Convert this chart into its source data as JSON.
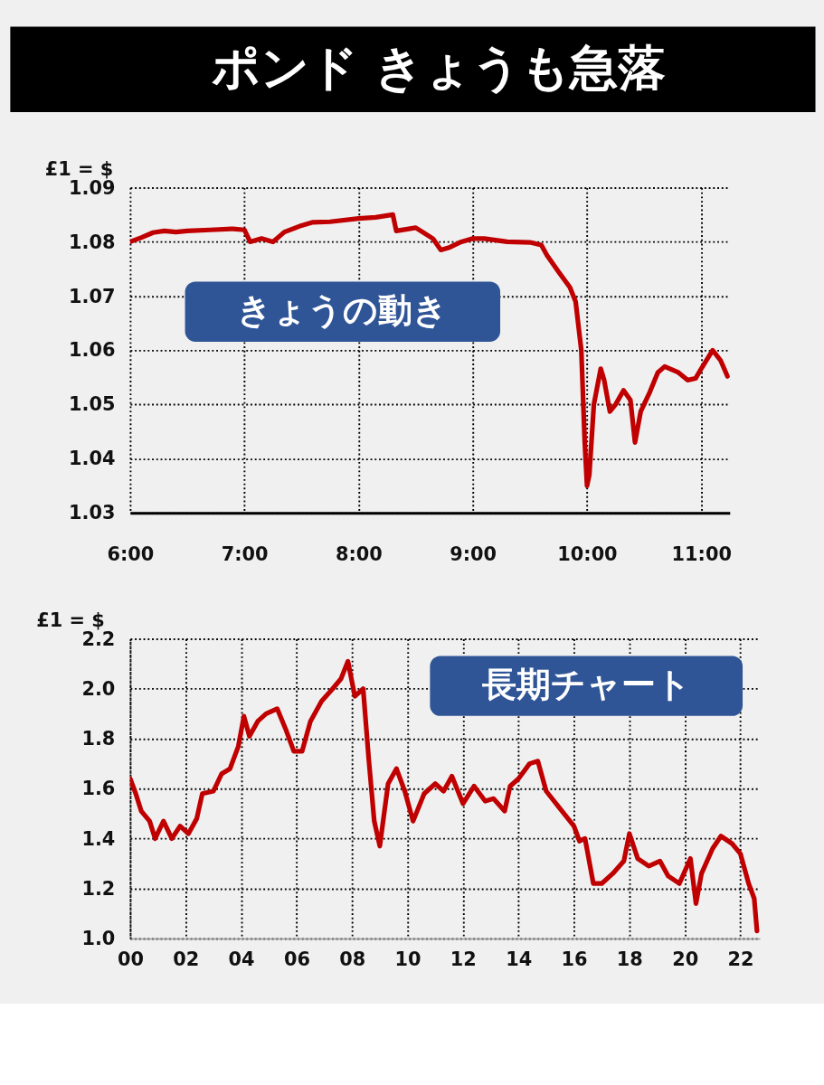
{
  "chart_data": [
    {
      "type": "line",
      "title": "ポンド きょうも急落",
      "ylabel": "£1 = $",
      "annotations": [
        "きょうの動き"
      ],
      "xlim": [
        6,
        11.25
      ],
      "ylim": [
        1.03,
        1.09
      ],
      "xticks": [
        {
          "value": 6,
          "label": "6:00"
        },
        {
          "value": 7,
          "label": "7:00"
        },
        {
          "value": 8,
          "label": "8:00"
        },
        {
          "value": 9,
          "label": "9:00"
        },
        {
          "value": 10,
          "label": "10:00"
        },
        {
          "value": 11,
          "label": "11:00"
        }
      ],
      "yticks": [
        1.03,
        1.04,
        1.05,
        1.06,
        1.07,
        1.08,
        1.09
      ],
      "grid": true,
      "marker": "none",
      "line_style": "solid",
      "series": [
        {
          "color": "#c00000",
          "x": [
            6,
            6.1,
            6.2,
            6.3,
            6.4,
            6.5,
            6.7,
            6.9,
            7.0,
            7.05,
            7.15,
            7.25,
            7.35,
            7.5,
            7.6,
            7.75,
            8.0,
            8.15,
            8.3,
            8.33,
            8.5,
            8.65,
            8.72,
            8.8,
            8.9,
            9.0,
            9.1,
            9.3,
            9.5,
            9.6,
            9.65,
            9.75,
            9.85,
            9.9,
            9.95,
            9.98,
            10.0,
            10.02,
            10.06,
            10.12,
            10.15,
            10.2,
            10.25,
            10.32,
            10.38,
            10.42,
            10.47,
            10.55,
            10.62,
            10.68,
            10.8,
            10.88,
            10.95,
            11.0,
            11.1,
            11.17,
            11.23
          ],
          "values": [
            1.08,
            1.0808,
            1.0817,
            1.082,
            1.0818,
            1.082,
            1.0822,
            1.0824,
            1.0822,
            1.08,
            1.0806,
            1.08,
            1.0818,
            1.083,
            1.0836,
            1.0837,
            1.0843,
            1.0845,
            1.085,
            1.082,
            1.0826,
            1.0806,
            1.0785,
            1.079,
            1.08,
            1.0806,
            1.0806,
            1.08,
            1.0799,
            1.0794,
            1.0775,
            1.0745,
            1.0716,
            1.069,
            1.06,
            1.043,
            1.035,
            1.037,
            1.05,
            1.0566,
            1.0545,
            1.0487,
            1.05,
            1.0526,
            1.0508,
            1.043,
            1.0487,
            1.0523,
            1.0559,
            1.057,
            1.0559,
            1.0545,
            1.0548,
            1.0566,
            1.06,
            1.0581,
            1.0552
          ]
        }
      ]
    },
    {
      "type": "line",
      "ylabel": "£1 = $",
      "annotations": [
        "長期チャート"
      ],
      "xlim": [
        0,
        22.7
      ],
      "ylim": [
        1.0,
        2.2
      ],
      "xticks": [
        {
          "value": 0,
          "label": "00"
        },
        {
          "value": 2,
          "label": "02"
        },
        {
          "value": 4,
          "label": "04"
        },
        {
          "value": 6,
          "label": "06"
        },
        {
          "value": 8,
          "label": "08"
        },
        10,
        12,
        14,
        16,
        18,
        20,
        22
      ],
      "yticks": [
        {
          "value": 1,
          "label": "1.0"
        },
        1.2,
        1.4,
        1.6,
        1.8,
        {
          "value": 2,
          "label": "2.0"
        },
        2.2
      ],
      "grid": true,
      "marker": "none",
      "line_style": "solid",
      "series": [
        {
          "color": "#c00000",
          "x": [
            0.0,
            0.2,
            0.4,
            0.7,
            0.9,
            1.2,
            1.5,
            1.8,
            2.1,
            2.4,
            2.6,
            3.0,
            3.3,
            3.6,
            3.9,
            4.1,
            4.3,
            4.6,
            4.9,
            5.3,
            5.6,
            5.9,
            6.2,
            6.5,
            6.9,
            7.3,
            7.6,
            7.85,
            8.1,
            8.4,
            8.6,
            8.8,
            9.0,
            9.3,
            9.6,
            9.9,
            10.2,
            10.6,
            11.0,
            11.3,
            11.6,
            12.0,
            12.4,
            12.8,
            13.1,
            13.5,
            13.7,
            14.0,
            14.4,
            14.7,
            15.0,
            15.5,
            16.0,
            16.2,
            16.4,
            16.7,
            17.0,
            17.4,
            17.8,
            18.0,
            18.3,
            18.7,
            19.1,
            19.4,
            19.8,
            20.2,
            20.4,
            20.6,
            21.0,
            21.3,
            21.7,
            22.0,
            22.3,
            22.5,
            22.6
          ],
          "values": [
            1.64,
            1.58,
            1.51,
            1.47,
            1.4,
            1.47,
            1.4,
            1.45,
            1.42,
            1.48,
            1.58,
            1.59,
            1.66,
            1.68,
            1.77,
            1.89,
            1.81,
            1.87,
            1.9,
            1.92,
            1.84,
            1.75,
            1.75,
            1.87,
            1.95,
            2.0,
            2.04,
            2.11,
            1.97,
            2.0,
            1.72,
            1.47,
            1.37,
            1.62,
            1.68,
            1.59,
            1.47,
            1.58,
            1.62,
            1.59,
            1.65,
            1.54,
            1.61,
            1.55,
            1.56,
            1.51,
            1.61,
            1.64,
            1.7,
            1.71,
            1.59,
            1.52,
            1.45,
            1.39,
            1.4,
            1.22,
            1.22,
            1.26,
            1.31,
            1.42,
            1.32,
            1.29,
            1.31,
            1.25,
            1.22,
            1.32,
            1.14,
            1.26,
            1.36,
            1.41,
            1.38,
            1.34,
            1.22,
            1.16,
            1.03
          ]
        }
      ]
    }
  ]
}
